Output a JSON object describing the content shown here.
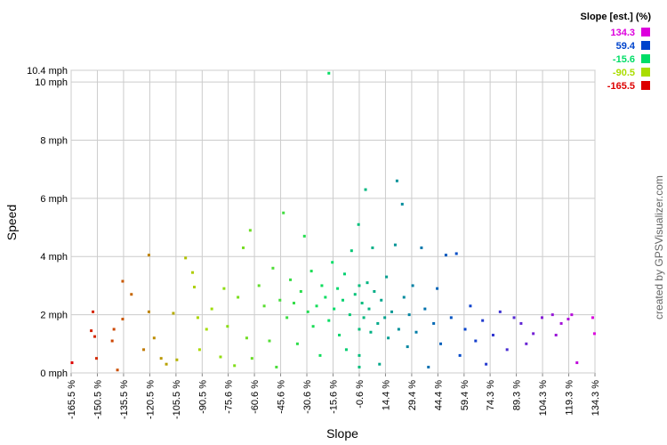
{
  "chart_data": {
    "type": "scatter",
    "x_label": "Slope",
    "y_label": "Speed",
    "credit": "created by GPSVisualizer.com",
    "legend_title": "Slope [est.] (%)",
    "color_scale": [
      {
        "value": 134.3,
        "color": "#dd00dd"
      },
      {
        "value": 59.4,
        "color": "#0044cc"
      },
      {
        "value": -15.6,
        "color": "#00dd66"
      },
      {
        "value": -90.5,
        "color": "#aadd00"
      },
      {
        "value": -165.5,
        "color": "#dd0000"
      }
    ],
    "xlim": [
      -165.5,
      134.3
    ],
    "ylim": [
      0,
      10.4
    ],
    "xticks": [
      {
        "value": -165.5,
        "label": "-165.5 %"
      },
      {
        "value": -150.5,
        "label": "-150.5 %"
      },
      {
        "value": -135.5,
        "label": "-135.5 %"
      },
      {
        "value": -120.5,
        "label": "-120.5 %"
      },
      {
        "value": -105.5,
        "label": "-105.5 %"
      },
      {
        "value": -90.5,
        "label": "-90.5 %"
      },
      {
        "value": -75.6,
        "label": "-75.6 %"
      },
      {
        "value": -60.6,
        "label": "-60.6 %"
      },
      {
        "value": -45.6,
        "label": "-45.6 %"
      },
      {
        "value": -30.6,
        "label": "-30.6 %"
      },
      {
        "value": -15.6,
        "label": "-15.6 %"
      },
      {
        "value": -0.6,
        "label": "-0.6 %"
      },
      {
        "value": 14.4,
        "label": "14.4 %"
      },
      {
        "value": 29.4,
        "label": "29.4 %"
      },
      {
        "value": 44.4,
        "label": "44.4 %"
      },
      {
        "value": 59.4,
        "label": "59.4 %"
      },
      {
        "value": 74.3,
        "label": "74.3 %"
      },
      {
        "value": 89.3,
        "label": "89.3 %"
      },
      {
        "value": 104.3,
        "label": "104.3 %"
      },
      {
        "value": 119.3,
        "label": "119.3 %"
      },
      {
        "value": 134.3,
        "label": "134.3 %"
      }
    ],
    "yticks": [
      {
        "value": 0,
        "label": "0 mph"
      },
      {
        "value": 2,
        "label": "2 mph"
      },
      {
        "value": 4,
        "label": "4 mph"
      },
      {
        "value": 6,
        "label": "6 mph"
      },
      {
        "value": 8,
        "label": "8 mph"
      },
      {
        "value": 10,
        "label": "10 mph"
      },
      {
        "value": 10.4,
        "label": "10.4 mph"
      }
    ],
    "grid": true,
    "x": [
      -165,
      -154,
      -153,
      -152,
      -151,
      -142,
      -141,
      -136,
      -136,
      -139,
      -131,
      -124,
      -121,
      -121,
      -118,
      -114,
      -111,
      -107,
      -105,
      -100,
      -96,
      -95,
      -93,
      -92,
      -88,
      -85,
      -80,
      -78,
      -76,
      -72,
      -70,
      -67,
      -65,
      -63,
      -62,
      -58,
      -55,
      -52,
      -50,
      -48,
      -46,
      -44,
      -42,
      -40,
      -38,
      -36,
      -34,
      -32,
      -30,
      -28,
      -27,
      -25,
      -23,
      -22,
      -20,
      -18,
      -18,
      -16,
      -15,
      -13,
      -12,
      -10,
      -9,
      -8,
      -6,
      -5,
      -3,
      -1,
      -0.6,
      -0.6,
      -0.6,
      -0.6,
      1,
      2,
      3,
      4,
      5,
      6,
      7,
      8,
      10,
      11,
      12,
      14,
      15,
      16,
      18,
      20,
      21,
      22,
      24,
      25,
      27,
      28,
      30,
      32,
      35,
      37,
      39,
      42,
      44,
      46,
      49,
      52,
      55,
      57,
      60,
      63,
      66,
      70,
      72,
      76,
      80,
      84,
      88,
      92,
      95,
      99,
      104,
      110,
      112,
      115,
      119,
      121,
      124,
      133,
      134
    ],
    "y": [
      0.35,
      1.45,
      2.1,
      1.25,
      0.5,
      1.1,
      1.5,
      3.15,
      1.85,
      0.1,
      2.7,
      0.8,
      4.05,
      2.1,
      1.2,
      0.5,
      0.3,
      2.05,
      0.45,
      3.95,
      3.45,
      2.95,
      1.9,
      0.8,
      1.5,
      2.2,
      0.55,
      2.9,
      1.6,
      0.25,
      2.6,
      4.3,
      1.2,
      4.9,
      0.5,
      3.0,
      2.3,
      1.1,
      3.6,
      0.2,
      2.5,
      5.5,
      1.9,
      3.2,
      2.4,
      1.0,
      2.8,
      4.7,
      2.1,
      3.5,
      1.6,
      2.3,
      0.6,
      3.0,
      2.6,
      10.3,
      1.8,
      3.8,
      2.2,
      2.9,
      1.3,
      2.5,
      3.4,
      0.8,
      2.0,
      4.2,
      2.7,
      5.1,
      0.2,
      0.6,
      1.5,
      3.0,
      2.4,
      1.9,
      6.3,
      3.1,
      2.2,
      1.4,
      4.3,
      2.8,
      1.7,
      0.3,
      2.5,
      1.9,
      3.3,
      1.2,
      2.1,
      4.4,
      6.6,
      1.5,
      5.8,
      2.6,
      0.9,
      2.0,
      3.0,
      1.4,
      4.3,
      2.2,
      0.2,
      1.7,
      2.9,
      1.0,
      4.05,
      1.9,
      4.1,
      0.6,
      1.5,
      2.3,
      1.1,
      1.8,
      0.3,
      1.3,
      2.1,
      0.8,
      1.9,
      1.7,
      1.0,
      1.35,
      1.9,
      2.0,
      1.3,
      1.7,
      1.85,
      2.0,
      0.35,
      1.9,
      1.35
    ]
  }
}
